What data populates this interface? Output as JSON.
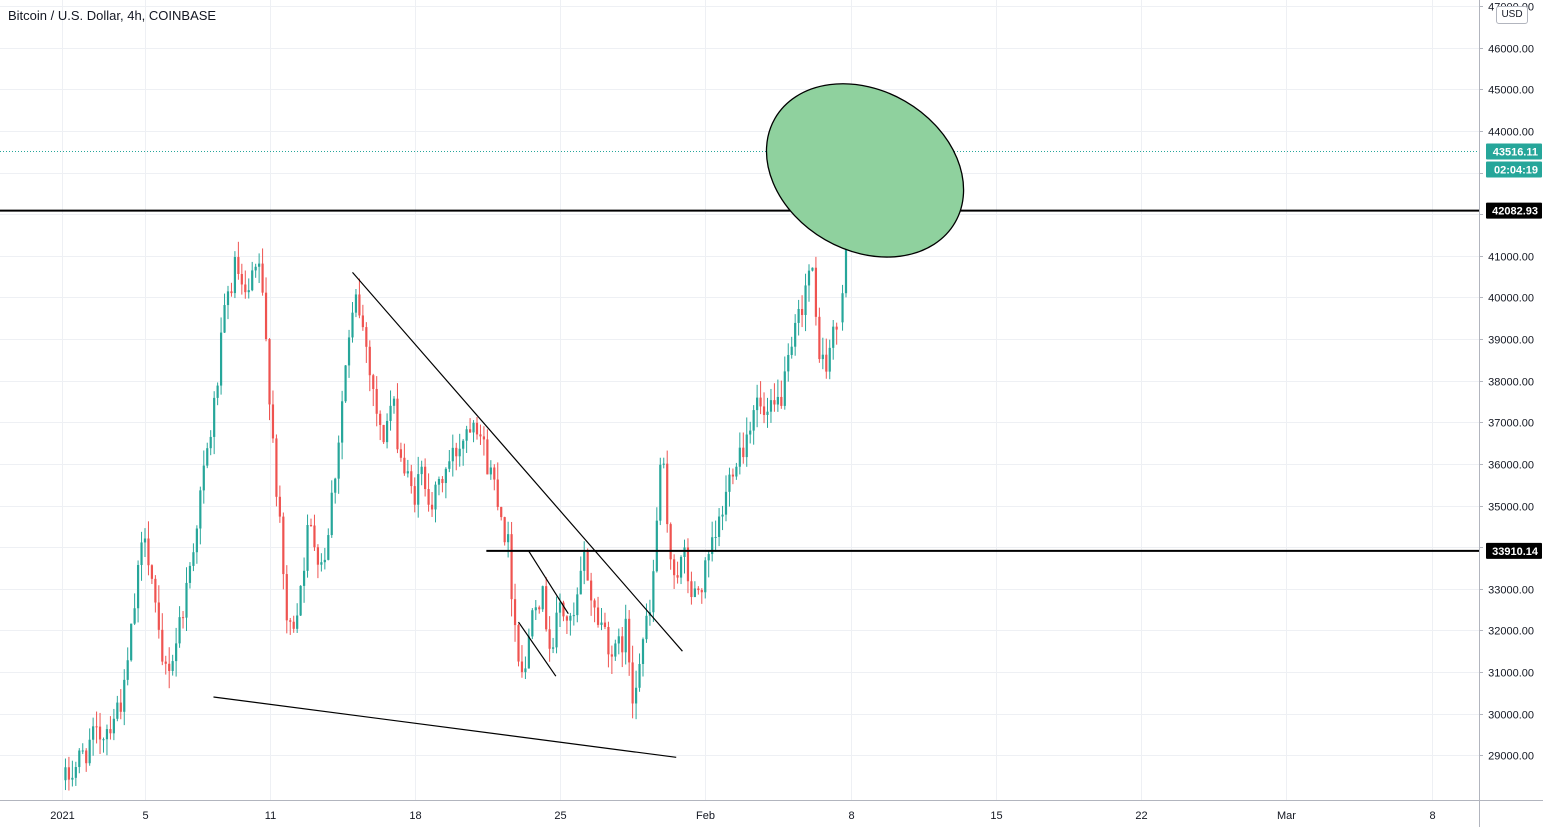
{
  "header": {
    "title": "Bitcoin / U.S. Dollar, 4h, COINBASE"
  },
  "price_axis": {
    "currency": "USD"
  },
  "chart_data": {
    "type": "candlestick",
    "title": "Bitcoin / U.S. Dollar, 4h, COINBASE",
    "x_ticks": [
      "2021",
      "5",
      "11",
      "18",
      "25",
      "Feb",
      "8",
      "15",
      "22",
      "Mar",
      "8"
    ],
    "y_ticks": [
      "47000.00",
      "46000.00",
      "45000.00",
      "44000.00",
      "43000.00",
      "42000.00",
      "41000.00",
      "40000.00",
      "39000.00",
      "38000.00",
      "37000.00",
      "36000.00",
      "35000.00",
      "34000.00",
      "33000.00",
      "32000.00",
      "31000.00",
      "30000.00",
      "29000.00"
    ],
    "ylim": [
      28000,
      47100
    ],
    "grid": true,
    "last_price": {
      "value": "43516.11",
      "countdown": "02:04:19",
      "color": "#26a69a"
    },
    "horizontal_levels": [
      {
        "name": "resistance-level",
        "value": "42082.93"
      },
      {
        "name": "support-level",
        "value": "33910.14"
      }
    ],
    "anchors": [
      [
        0.0,
        28250
      ],
      [
        1.3,
        29250
      ],
      [
        2.2,
        29700
      ],
      [
        3.0,
        30500
      ],
      [
        3.6,
        33000
      ],
      [
        4.0,
        34500
      ],
      [
        4.4,
        33000
      ],
      [
        4.8,
        31000
      ],
      [
        5.3,
        31300
      ],
      [
        6.0,
        33000
      ],
      [
        6.6,
        35000
      ],
      [
        7.3,
        37200
      ],
      [
        7.9,
        39800
      ],
      [
        8.4,
        40800
      ],
      [
        8.8,
        39800
      ],
      [
        9.5,
        40800
      ],
      [
        9.9,
        38500
      ],
      [
        10.4,
        35000
      ],
      [
        10.9,
        31800
      ],
      [
        11.3,
        32500
      ],
      [
        11.9,
        34500
      ],
      [
        12.6,
        33600
      ],
      [
        13.2,
        36000
      ],
      [
        13.7,
        38500
      ],
      [
        14.2,
        40000
      ],
      [
        14.8,
        38500
      ],
      [
        15.4,
        36500
      ],
      [
        15.9,
        37500
      ],
      [
        16.4,
        36000
      ],
      [
        16.9,
        35200
      ],
      [
        17.4,
        35800
      ],
      [
        17.9,
        35000
      ],
      [
        18.4,
        35800
      ],
      [
        18.9,
        36200
      ],
      [
        19.4,
        36800
      ],
      [
        19.9,
        37300
      ],
      [
        20.4,
        36200
      ],
      [
        21.0,
        35300
      ],
      [
        21.5,
        34000
      ],
      [
        21.9,
        31800
      ],
      [
        22.3,
        30800
      ],
      [
        22.7,
        33000
      ],
      [
        23.2,
        32700
      ],
      [
        23.6,
        31500
      ],
      [
        24.0,
        32600
      ],
      [
        24.6,
        32000
      ],
      [
        25.2,
        33800
      ],
      [
        25.6,
        32500
      ],
      [
        26.2,
        32000
      ],
      [
        26.6,
        31300
      ],
      [
        27.2,
        32000
      ],
      [
        27.5,
        30500
      ],
      [
        27.9,
        31600
      ],
      [
        28.4,
        32500
      ],
      [
        28.9,
        36500
      ],
      [
        29.2,
        34000
      ],
      [
        29.6,
        33400
      ],
      [
        30.0,
        33700
      ],
      [
        30.4,
        32700
      ],
      [
        30.9,
        33200
      ],
      [
        31.4,
        34000
      ],
      [
        31.9,
        35000
      ],
      [
        32.4,
        36200
      ],
      [
        32.9,
        36500
      ],
      [
        33.4,
        37600
      ],
      [
        33.9,
        37000
      ],
      [
        34.4,
        37300
      ],
      [
        34.9,
        38000
      ],
      [
        35.3,
        39000
      ],
      [
        35.7,
        40000
      ],
      [
        36.1,
        40800
      ],
      [
        36.4,
        39000
      ],
      [
        36.8,
        38200
      ],
      [
        37.1,
        39000
      ],
      [
        37.45,
        39400
      ]
    ],
    "last_candles": [
      {
        "open": 39400,
        "high": 40300,
        "low": 39200,
        "close": 40100
      },
      {
        "open": 40100,
        "high": 42500,
        "low": 40000,
        "close": 42300
      },
      {
        "open": 42300,
        "high": 44950,
        "low": 42000,
        "close": 43516.11
      }
    ],
    "trendlines": [
      {
        "name": "upper-trendline",
        "from": [
          14.0,
          40600
        ],
        "to": [
          29.9,
          31500
        ]
      },
      {
        "name": "lower-trendline",
        "from": [
          7.3,
          30400
        ],
        "to": [
          29.6,
          28950
        ]
      },
      {
        "name": "channel-line-a",
        "from": [
          22.5,
          33900
        ],
        "to": [
          24.4,
          32400
        ]
      },
      {
        "name": "channel-line-b",
        "from": [
          22.0,
          32200
        ],
        "to": [
          23.8,
          30900
        ]
      }
    ],
    "ellipse": {
      "center": [
        38.7,
        43050
      ],
      "fill": "#8fd19e",
      "stroke": "#000000"
    },
    "colors": {
      "up": "#26a69a",
      "down": "#ef5350"
    }
  }
}
